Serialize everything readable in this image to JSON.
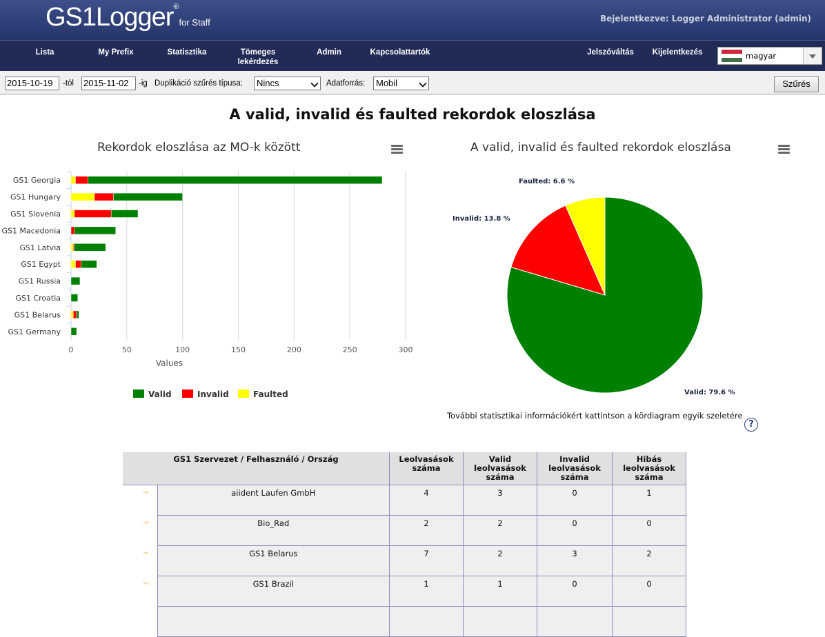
{
  "header": {
    "logo_main": "GS1Logger",
    "logo_reg": "®",
    "logo_sub": "for Staff",
    "logged_in": "Bejelentkezve: Logger Administrator (admin)"
  },
  "nav": {
    "items": [
      "Lista",
      "My Prefix",
      "Statisztika",
      "Tömeges lekérdezés",
      "Admin",
      "Kapcsolattartók"
    ],
    "right_items": [
      "Jelszóváltás",
      "Kijelentkezés"
    ],
    "language": "magyar"
  },
  "filter": {
    "from_date": "2015-10-19",
    "from_label": "-tól",
    "to_date": "2015-11-02",
    "to_label": "-ig",
    "dup_label": "Duplikáció szűrés típusa:",
    "dup_value": "Nincs",
    "source_label": "Adatforrás:",
    "source_value": "Mobil",
    "button": "Szűrés"
  },
  "page_title": "A valid, invalid és faulted rekordok eloszlása",
  "hint": "További statisztikai információkért kattintson a kördiagram egyik szeletére",
  "colors": {
    "valid": "#008000",
    "invalid": "#ff0000",
    "faulted": "#ffff00"
  },
  "chart_data": [
    {
      "type": "bar",
      "orientation": "horizontal",
      "stacked": true,
      "title": "Rekordok eloszlása az MO-k között",
      "xlabel": "Values",
      "xlim": [
        0,
        300
      ],
      "xticks": [
        0,
        50,
        100,
        150,
        200,
        250,
        300
      ],
      "categories": [
        "GS1 Georgia",
        "GS1 Hungary",
        "GS1 Slovenia",
        "GS1 Macedonia",
        "GS1 Latvia",
        "GS1 Egypt",
        "GS1 Russia",
        "GS1 Croatia",
        "GS1 Belarus",
        "GS1 Germany"
      ],
      "series": [
        {
          "name": "Faulted",
          "values": [
            4,
            21,
            3,
            0,
            2,
            4,
            0,
            0,
            2,
            0
          ]
        },
        {
          "name": "Invalid",
          "values": [
            11,
            17,
            33,
            3,
            1,
            5,
            0,
            0,
            3,
            0
          ]
        },
        {
          "name": "Valid",
          "values": [
            264,
            62,
            24,
            37,
            28,
            14,
            8,
            6,
            2,
            5
          ]
        }
      ],
      "legend": "bottom",
      "grid": true
    },
    {
      "type": "pie",
      "title": "A valid, invalid és faulted rekordok eloszlása",
      "slices": [
        {
          "name": "Valid",
          "value": 79.6,
          "label": "Valid: 79.6 %"
        },
        {
          "name": "Invalid",
          "value": 13.8,
          "label": "Invalid: 13.8 %"
        },
        {
          "name": "Faulted",
          "value": 6.6,
          "label": "Faulted: 6.6 %"
        }
      ]
    }
  ],
  "table": {
    "headers": [
      "GS1 Szervezet / Felhasználó / Ország",
      "Leolvasások száma",
      "Valid leolvasások száma",
      "Invalid leolvasások száma",
      "Hibás leolvasások száma"
    ],
    "rows": [
      [
        "aiident Laufen GmbH",
        "4",
        "3",
        "0",
        "1"
      ],
      [
        "Bio_Rad",
        "2",
        "2",
        "0",
        "0"
      ],
      [
        "GS1 Belarus",
        "7",
        "2",
        "3",
        "2"
      ],
      [
        "GS1 Brazil",
        "1",
        "1",
        "0",
        "0"
      ]
    ],
    "row_marker": "⇨"
  }
}
